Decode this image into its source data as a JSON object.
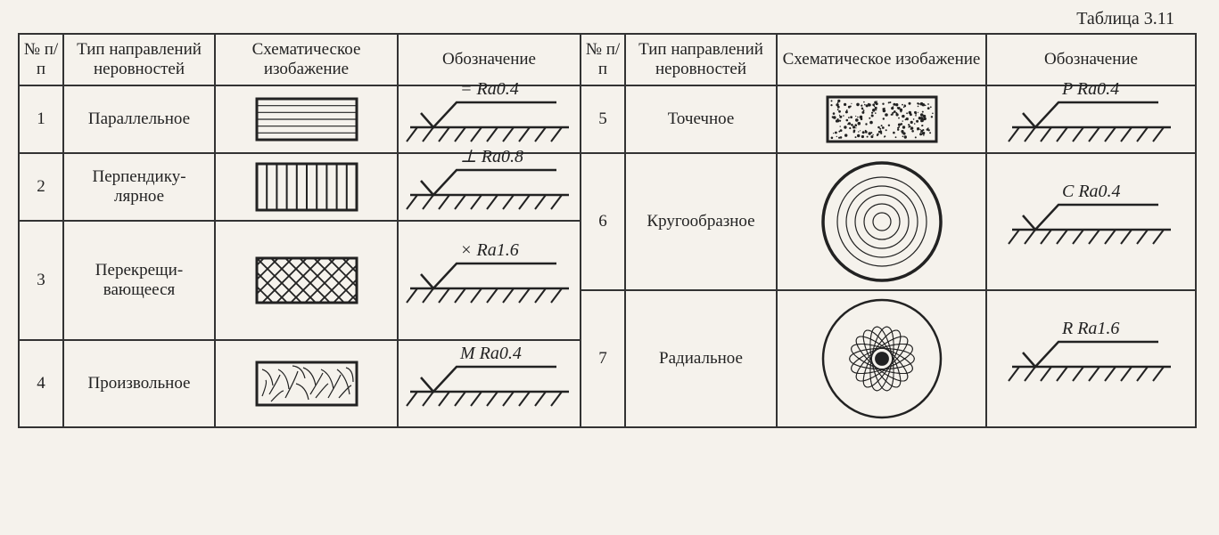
{
  "caption": "Таблица 3.11",
  "headers": {
    "num": "№ п/п",
    "type": "Тип направлений неровностей",
    "schematic": "Схематическое изобажение",
    "designation": "Обозначение"
  },
  "table": {
    "border_color": "#333333",
    "background_color": "#f5f2ec",
    "text_color": "#232323",
    "font_family": "Times New Roman, serif",
    "header_fontsize": 19,
    "cell_fontsize": 19,
    "col_widths_left": [
      50,
      170,
      200,
      200
    ],
    "col_widths_right": [
      50,
      170,
      240,
      240
    ]
  },
  "designation_symbol": {
    "stroke": "#222222",
    "stroke_width": 2.5,
    "text_fontsize": 20,
    "text_style": "italic"
  },
  "rows_left": [
    {
      "num": "1",
      "name": "Параллельное",
      "schematic": "parallel",
      "symbol": "=",
      "ra": "Ra0.4"
    },
    {
      "num": "2",
      "name": "Перпендику-\nлярное",
      "schematic": "perpend",
      "symbol": "⊥",
      "ra": "Ra0.8"
    },
    {
      "num": "3",
      "name": "Перекрещи-\nвающееся",
      "schematic": "cross",
      "symbol": "×",
      "ra": "Ra1.6"
    },
    {
      "num": "4",
      "name": "Произвольное",
      "schematic": "random",
      "symbol": "M",
      "ra": "Ra0.4"
    }
  ],
  "rows_right": [
    {
      "num": "5",
      "name": "Точечное",
      "schematic": "dots",
      "symbol": "P",
      "ra": "Ra0.4",
      "span": 2
    },
    {
      "num": "6",
      "name": "Кругообразное",
      "schematic": "circles",
      "symbol": "C",
      "ra": "Ra0.4",
      "span": 3
    },
    {
      "num": "7",
      "name": "Радиальное",
      "schematic": "radial",
      "symbol": "R",
      "ra": "Ra1.6",
      "span": 3
    }
  ],
  "schematic_styles": {
    "parallel": {
      "outer_stroke": "#222",
      "outer_width": 3,
      "inner_stroke": "#222",
      "inner_width": 1.2,
      "fill": "none",
      "w": 120,
      "h": 54
    },
    "perpend": {
      "outer_stroke": "#222",
      "outer_width": 3,
      "inner_stroke": "#222",
      "inner_width": 2,
      "fill": "none",
      "w": 120,
      "h": 60
    },
    "cross": {
      "outer_stroke": "#222",
      "outer_width": 3,
      "inner_stroke": "#222",
      "inner_width": 1.8,
      "fill": "none",
      "w": 120,
      "h": 58
    },
    "random": {
      "outer_stroke": "#222",
      "outer_width": 3,
      "inner_stroke": "#222",
      "inner_width": 1.2,
      "fill": "none",
      "w": 120,
      "h": 56
    },
    "dots": {
      "outer_stroke": "#222",
      "outer_width": 3,
      "dot_color": "#222",
      "fill": "none",
      "w": 130,
      "h": 58
    },
    "circles": {
      "outer_stroke": "#222",
      "outer_width": 3.5,
      "inner_stroke": "#222",
      "inner_width": 1.2,
      "w": 140,
      "h": 140
    },
    "radial": {
      "outer_stroke": "#222",
      "outer_width": 2.5,
      "inner_stroke": "#222",
      "inner_width": 1,
      "w": 140,
      "h": 140
    }
  }
}
